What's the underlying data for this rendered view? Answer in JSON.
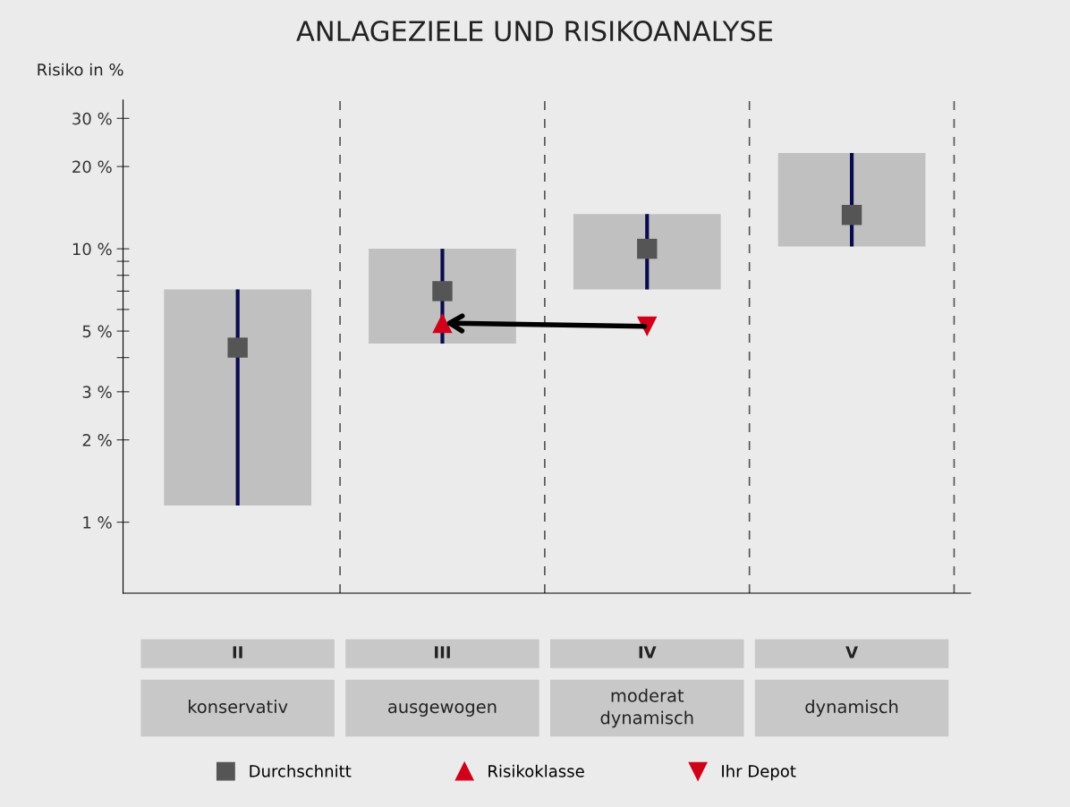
{
  "chart_data": {
    "type": "bar",
    "title": "ANLAGEZIELE UND RISIKOANALYSE",
    "ylabel": "Risiko in %",
    "categories": [
      "II",
      "III",
      "IV",
      "V"
    ],
    "series": [
      {
        "color": "#c0c0c0",
        "base": [
          1.15,
          4.5,
          7.1,
          10.2
        ],
        "values": [
          5.95,
          5.5,
          6.3,
          12.2
        ]
      },
      {
        "type": "scatter",
        "name": "Durchschnitt",
        "color": "#555555",
        "marker": "square",
        "values": [
          4.35,
          7.0,
          10.0,
          13.3
        ],
        "errors": [
          [
            1.15,
            7.1
          ],
          [
            4.5,
            10.0
          ],
          [
            7.1,
            13.4
          ],
          [
            10.2,
            22.4
          ]
        ]
      },
      {
        "type": "scatter",
        "name": "Risikoklasse",
        "color": "#d0021b",
        "marker": "triangle",
        "values": [
          null,
          5.35,
          null,
          null
        ]
      },
      {
        "type": "scatter",
        "name": "Ihr Depot",
        "color": "#d0021b",
        "marker": "triangle_down",
        "values": [
          null,
          null,
          5.2,
          null
        ]
      }
    ],
    "log": true,
    "ylim": [
      0.55,
      35
    ],
    "yticks": [
      {
        "value": 1,
        "label": "1 %"
      },
      {
        "value": 2,
        "label": "2 %"
      },
      {
        "value": 3,
        "label": "3 %"
      },
      {
        "value": 4,
        "label": null
      },
      {
        "value": 5,
        "label": "5 %"
      },
      {
        "value": 6,
        "label": null
      },
      {
        "value": 7,
        "label": null
      },
      {
        "value": 8,
        "label": null
      },
      {
        "value": 9,
        "label": null
      },
      {
        "value": 10,
        "label": "10 %"
      },
      {
        "value": 20,
        "label": "20 %"
      },
      {
        "value": 30,
        "label": "30 %"
      }
    ],
    "annotations": [
      "konservativ",
      "ausgewogen",
      "moderat\ndynamisch",
      "dynamisch"
    ],
    "legend": "bottom",
    "grid": false
  }
}
